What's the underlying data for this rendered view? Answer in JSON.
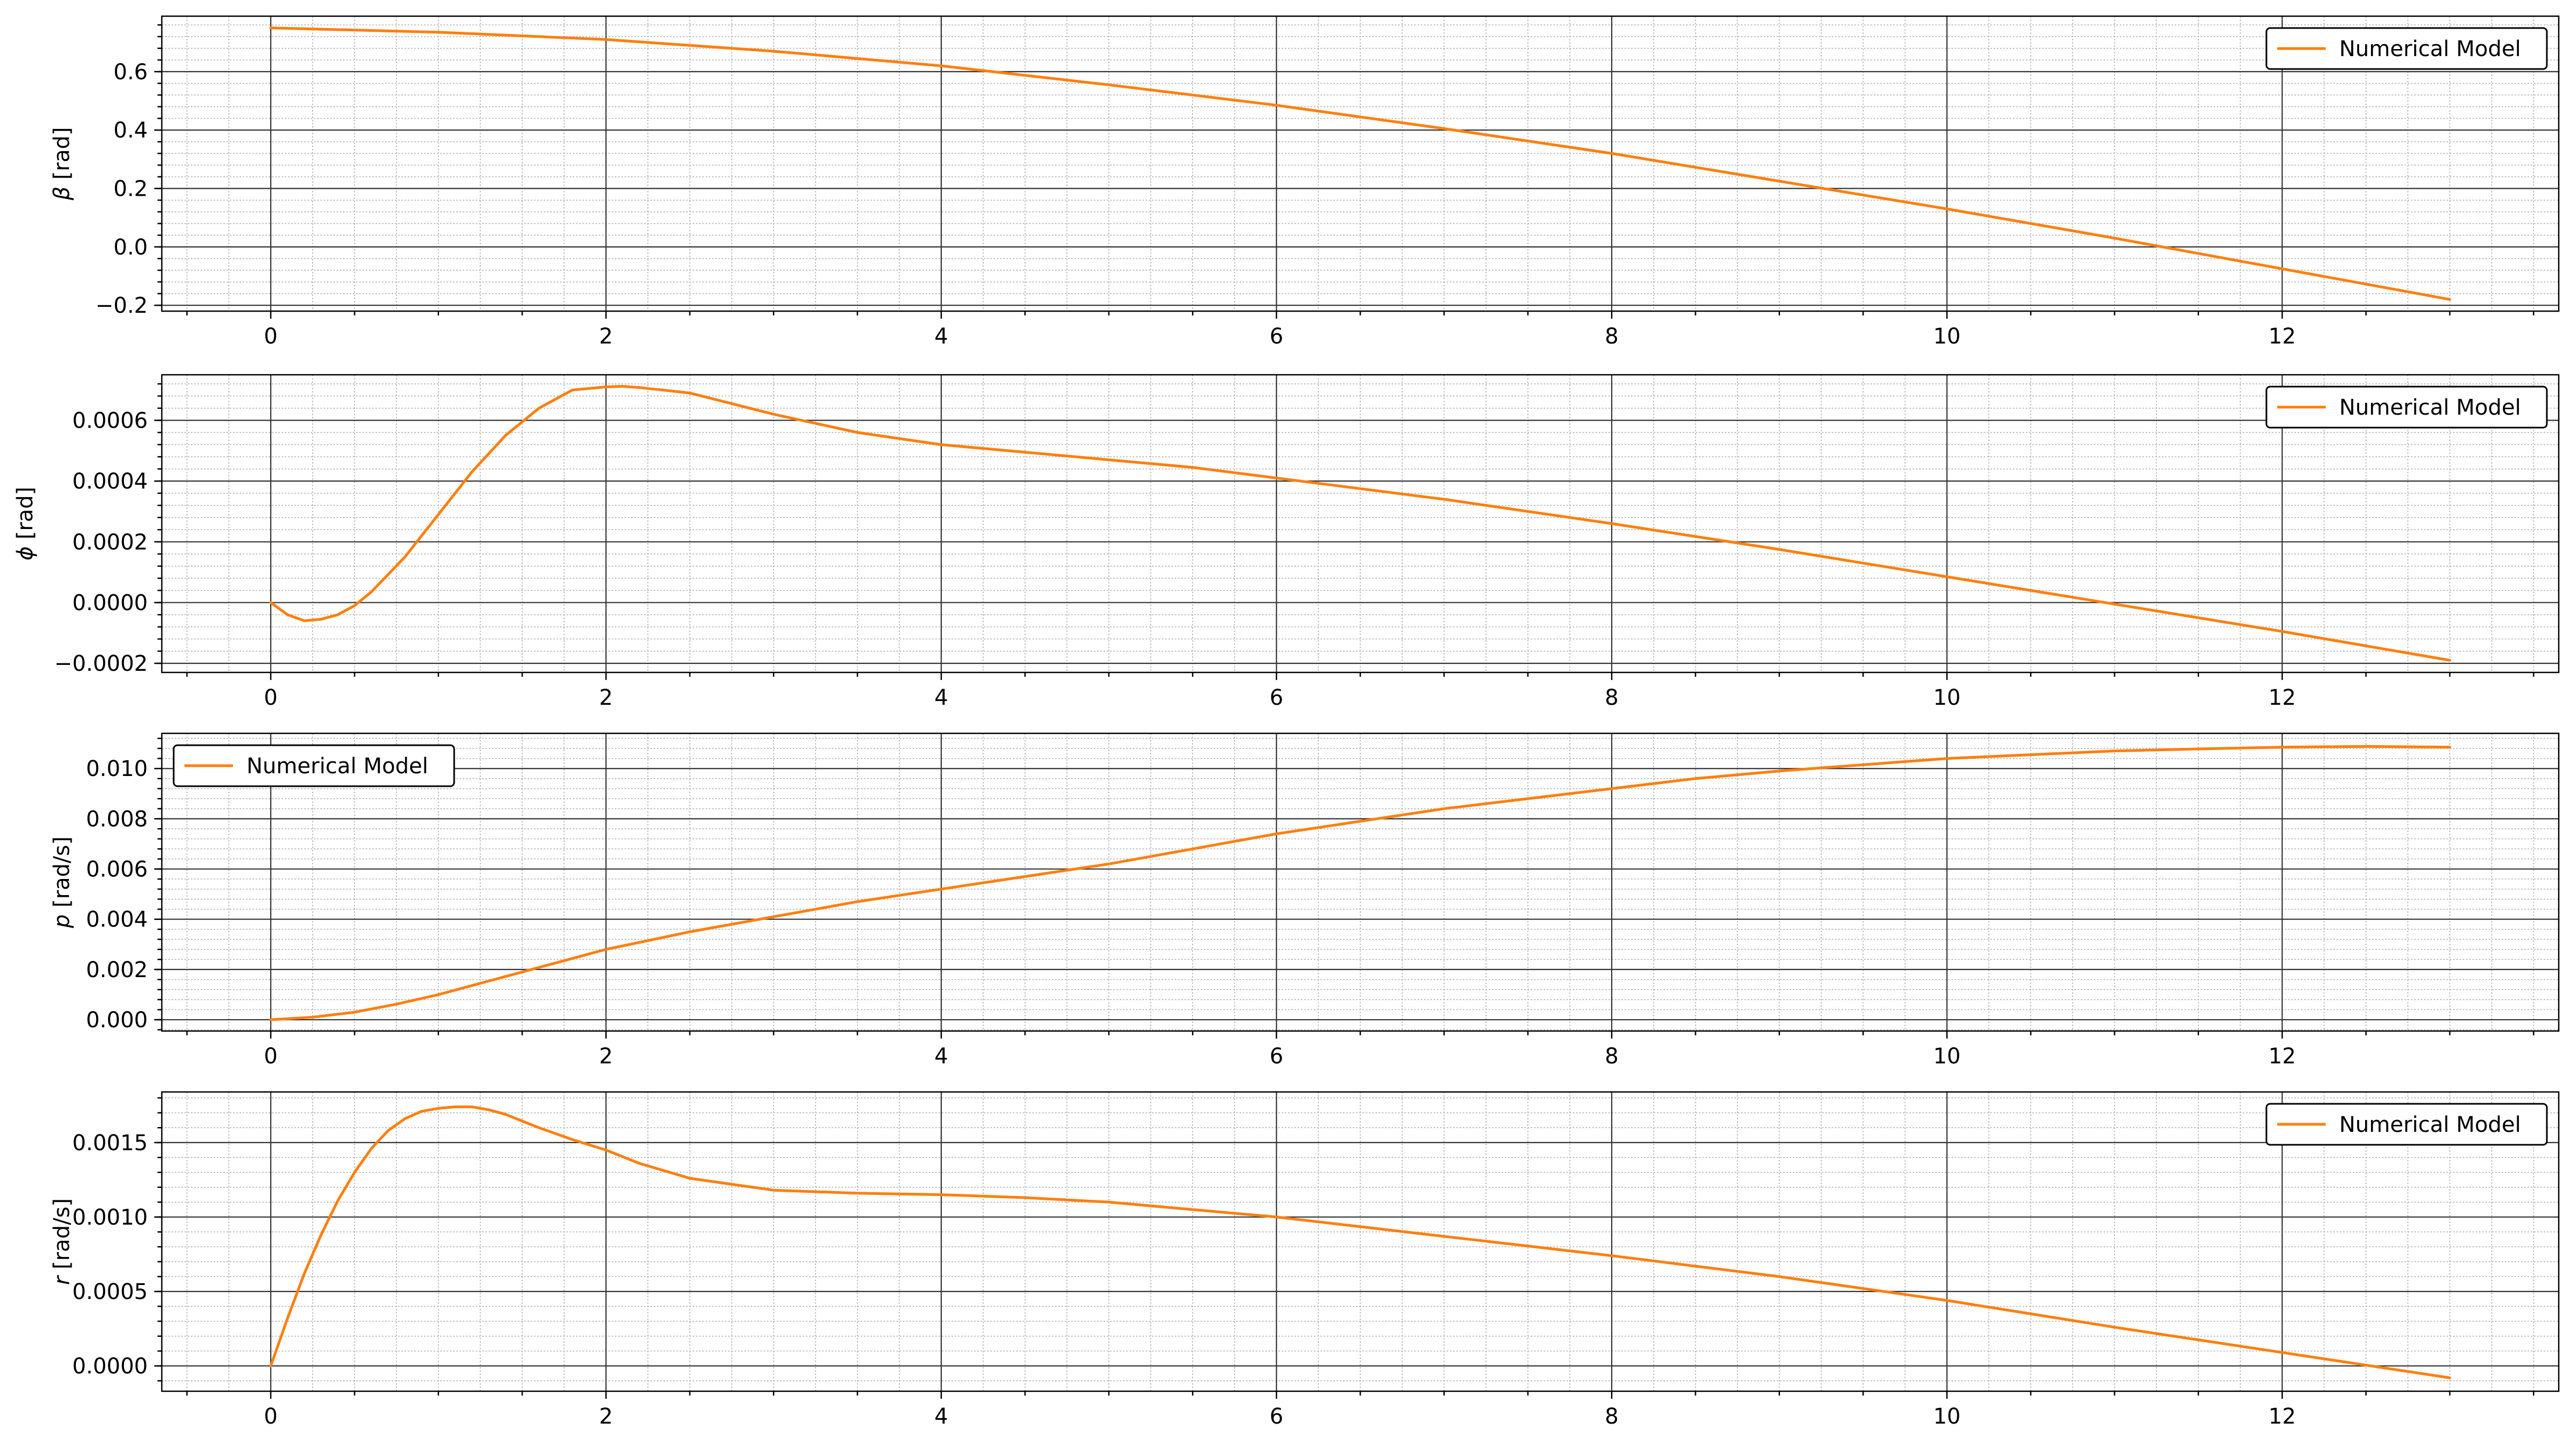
{
  "chart_data": [
    {
      "type": "line",
      "ylabel_symbol": "β",
      "ylabel_unit": " [rad]",
      "xlim": [
        -0.65,
        13.65
      ],
      "ylim": [
        -0.22,
        0.79
      ],
      "xticks": [
        0,
        2,
        4,
        6,
        8,
        10,
        12
      ],
      "xtick_labels": [
        "0",
        "2",
        "4",
        "6",
        "8",
        "10",
        "12"
      ],
      "yticks": [
        -0.2,
        0.0,
        0.2,
        0.4,
        0.6
      ],
      "ytick_labels": [
        "−0.2",
        "0.0",
        "0.2",
        "0.4",
        "0.6"
      ],
      "yminor_step": 0.04,
      "legend_loc": "top-right",
      "grid": true,
      "series": [
        {
          "name": "Numerical Model",
          "color": "#ff7f0e",
          "x": [
            0,
            1,
            2,
            3,
            4,
            5,
            6,
            7,
            8,
            9,
            10,
            11,
            12,
            13
          ],
          "y": [
            0.75,
            0.735,
            0.71,
            0.67,
            0.62,
            0.555,
            0.485,
            0.405,
            0.32,
            0.225,
            0.13,
            0.03,
            -0.075,
            -0.18
          ]
        }
      ]
    },
    {
      "type": "line",
      "ylabel_symbol": "ϕ",
      "ylabel_unit": " [rad]",
      "xlim": [
        -0.65,
        13.65
      ],
      "ylim": [
        -0.00023,
        0.00075
      ],
      "xticks": [
        0,
        2,
        4,
        6,
        8,
        10,
        12
      ],
      "xtick_labels": [
        "0",
        "2",
        "4",
        "6",
        "8",
        "10",
        "12"
      ],
      "yticks": [
        -0.0002,
        0.0,
        0.0002,
        0.0004,
        0.0006
      ],
      "ytick_labels": [
        "−0.0002",
        "0.0000",
        "0.0002",
        "0.0004",
        "0.0006"
      ],
      "yminor_step": 4e-05,
      "legend_loc": "top-right",
      "grid": true,
      "series": [
        {
          "name": "Numerical Model",
          "color": "#ff7f0e",
          "x": [
            0,
            0.1,
            0.2,
            0.3,
            0.4,
            0.5,
            0.6,
            0.8,
            1.0,
            1.2,
            1.4,
            1.6,
            1.8,
            2.0,
            2.1,
            2.2,
            2.5,
            3.0,
            3.5,
            4.0,
            4.5,
            5.0,
            5.5,
            6.0,
            7.0,
            8.0,
            9.0,
            10.0,
            11.0,
            12.0,
            13.0
          ],
          "y": [
            0.0,
            -4e-05,
            -6e-05,
            -5.5e-05,
            -4e-05,
            -1e-05,
            3.5e-05,
            0.00015,
            0.00029,
            0.00043,
            0.00055,
            0.00064,
            0.0007,
            0.00071,
            0.000712,
            0.000708,
            0.00069,
            0.00062,
            0.00056,
            0.00052,
            0.000495,
            0.00047,
            0.000445,
            0.00041,
            0.00034,
            0.00026,
            0.000175,
            8.5e-05,
            -5e-06,
            -9.5e-05,
            -0.00019
          ]
        }
      ]
    },
    {
      "type": "line",
      "ylabel_symbol": "p",
      "ylabel_unit": " [rad/s]",
      "xlim": [
        -0.65,
        13.65
      ],
      "ylim": [
        -0.00045,
        0.0114
      ],
      "xticks": [
        0,
        2,
        4,
        6,
        8,
        10,
        12
      ],
      "xtick_labels": [
        "0",
        "2",
        "4",
        "6",
        "8",
        "10",
        "12"
      ],
      "yticks": [
        0.0,
        0.002,
        0.004,
        0.006,
        0.008,
        0.01
      ],
      "ytick_labels": [
        "0.000",
        "0.002",
        "0.004",
        "0.006",
        "0.008",
        "0.010"
      ],
      "yminor_step": 0.0004,
      "legend_loc": "top-left",
      "grid": true,
      "series": [
        {
          "name": "Numerical Model",
          "color": "#ff7f0e",
          "x": [
            0,
            0.25,
            0.5,
            0.75,
            1.0,
            1.5,
            2.0,
            2.5,
            3.0,
            3.5,
            4.0,
            4.5,
            5.0,
            5.5,
            6.0,
            6.5,
            7.0,
            7.5,
            8.0,
            8.5,
            9.0,
            9.5,
            10.0,
            10.5,
            11.0,
            11.5,
            12.0,
            12.5,
            13.0
          ],
          "y": [
            0.0,
            0.0001,
            0.0003,
            0.00062,
            0.001,
            0.0019,
            0.0028,
            0.0035,
            0.0041,
            0.0047,
            0.0052,
            0.0057,
            0.0062,
            0.0068,
            0.0074,
            0.0079,
            0.0084,
            0.0088,
            0.0092,
            0.0096,
            0.0099,
            0.01015,
            0.0104,
            0.01055,
            0.0107,
            0.01078,
            0.01085,
            0.01088,
            0.01085
          ]
        }
      ]
    },
    {
      "type": "line",
      "ylabel_symbol": "r",
      "ylabel_unit": " [rad/s]",
      "xlim": [
        -0.65,
        13.65
      ],
      "ylim": [
        -0.00017,
        0.00184
      ],
      "xticks": [
        0,
        2,
        4,
        6,
        8,
        10,
        12
      ],
      "xtick_labels": [
        "0",
        "2",
        "4",
        "6",
        "8",
        "10",
        "12"
      ],
      "yticks": [
        0.0,
        0.0005,
        0.001,
        0.0015
      ],
      "ytick_labels": [
        "0.0000",
        "0.0005",
        "0.0010",
        "0.0015"
      ],
      "yminor_step": 0.0001,
      "legend_loc": "top-right",
      "grid": true,
      "series": [
        {
          "name": "Numerical Model",
          "color": "#ff7f0e",
          "x": [
            0,
            0.1,
            0.2,
            0.3,
            0.4,
            0.5,
            0.6,
            0.7,
            0.8,
            0.9,
            1.0,
            1.1,
            1.2,
            1.3,
            1.4,
            1.6,
            1.8,
            2.0,
            2.2,
            2.5,
            3.0,
            3.5,
            4.0,
            4.5,
            5.0,
            5.5,
            6.0,
            7.0,
            8.0,
            9.0,
            10.0,
            11.0,
            12.0,
            13.0
          ],
          "y": [
            0.0,
            0.00032,
            0.00062,
            0.00088,
            0.00111,
            0.0013,
            0.00146,
            0.00158,
            0.00166,
            0.00171,
            0.00173,
            0.00174,
            0.00174,
            0.00172,
            0.00169,
            0.0016,
            0.00152,
            0.00145,
            0.00136,
            0.00126,
            0.00118,
            0.00116,
            0.00115,
            0.00113,
            0.0011,
            0.00105,
            0.001,
            0.00087,
            0.00074,
            0.0006,
            0.00044,
            0.00026,
            9e-05,
            -8e-05
          ]
        }
      ]
    }
  ]
}
